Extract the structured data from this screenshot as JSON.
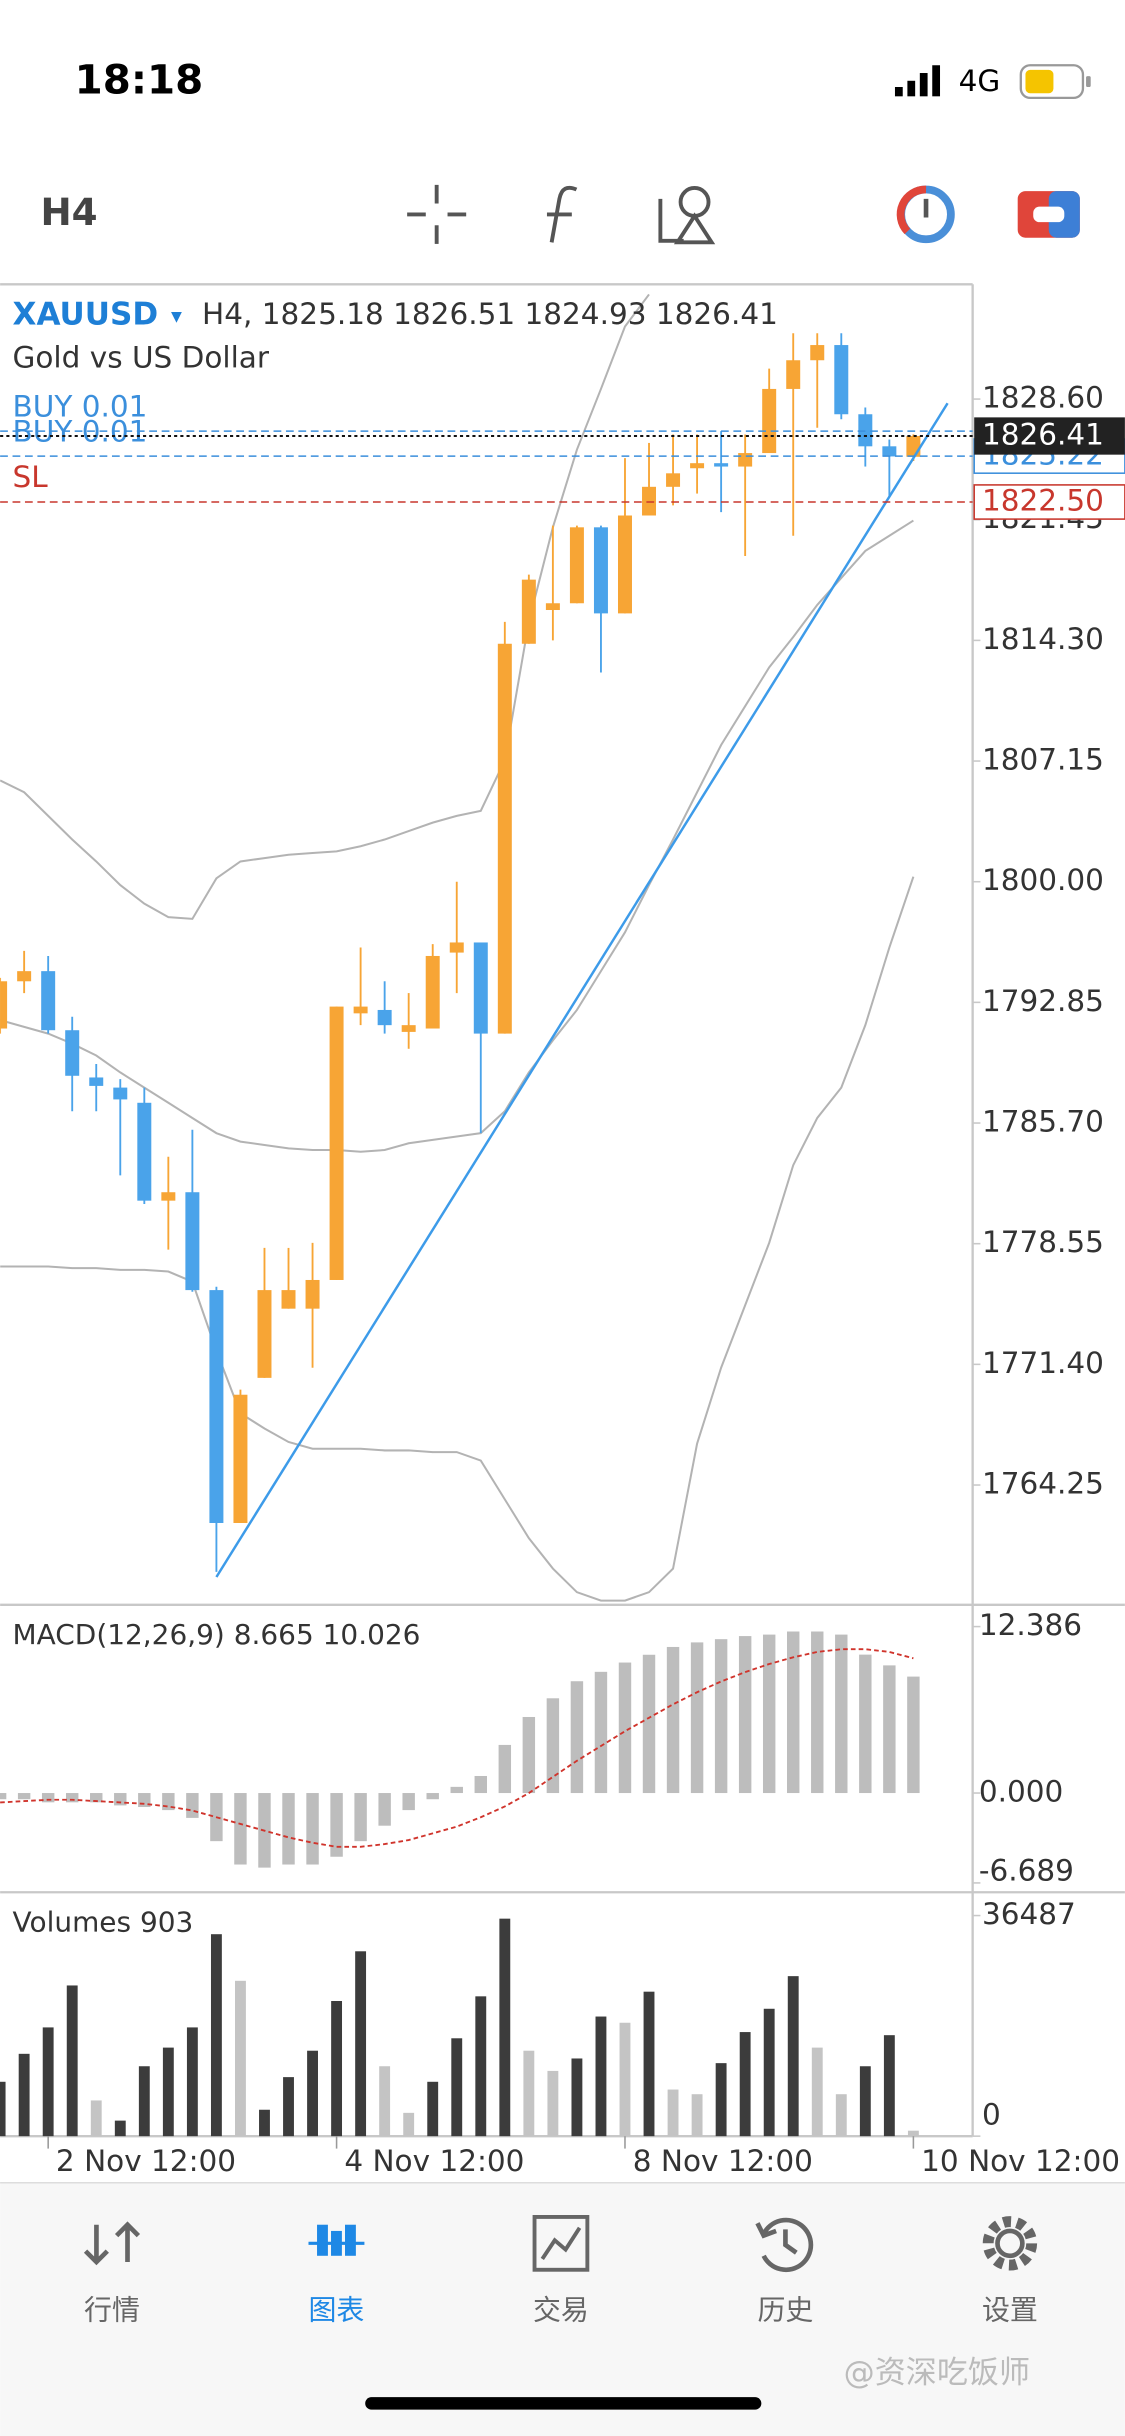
{
  "status_bar": {
    "time": "18:18",
    "network": "4G"
  },
  "toolbar": {
    "timeframe": "H4"
  },
  "chart": {
    "type": "candlestick",
    "symbol": "XAUUSD",
    "info": "H4, 1825.18 1826.51 1824.93 1826.41",
    "description": "Gold vs US Dollar",
    "ylim": [
      1757.15,
      1835.4
    ],
    "yticks": [
      {
        "value": 1828.6,
        "label": "1828.60"
      },
      {
        "value": 1821.45,
        "label": "1821.45"
      },
      {
        "value": 1814.3,
        "label": "1814.30"
      },
      {
        "value": 1807.15,
        "label": "1807.15"
      },
      {
        "value": 1800,
        "label": "1800.00"
      },
      {
        "value": 1792.85,
        "label": "1792.85"
      },
      {
        "value": 1785.7,
        "label": "1785.70"
      },
      {
        "value": 1778.55,
        "label": "1778.55"
      },
      {
        "value": 1771.4,
        "label": "1771.40"
      },
      {
        "value": 1764.25,
        "label": "1764.25"
      }
    ],
    "up_color": "#f7a535",
    "down_color": "#4aa3ea",
    "candles": {
      "open": [
        1791.3,
        1794.1,
        1794.7,
        1791.2,
        1788.4,
        1787.8,
        1786.9,
        1781.1,
        1781.6,
        1775.8,
        1762.0,
        1770.6,
        1774.7,
        1774.7,
        1776.4,
        1792.2,
        1792.4,
        1791.1,
        1791.3,
        1795.8,
        1796.4,
        1791.0,
        1814.1,
        1816.1,
        1816.5,
        1821.0,
        1815.9,
        1821.7,
        1823.4,
        1824.5,
        1824.8,
        1824.6,
        1825.4,
        1829.2,
        1830.9,
        1831.8,
        1827.7,
        1825.8,
        1825.18
      ],
      "high": [
        1794.3,
        1795.9,
        1795.6,
        1792.0,
        1789.2,
        1788.3,
        1787.8,
        1783.7,
        1785.3,
        1776.0,
        1769.9,
        1778.3,
        1778.3,
        1778.6,
        1792.6,
        1796.1,
        1794.1,
        1793.4,
        1796.3,
        1800.0,
        1796.4,
        1815.4,
        1818.2,
        1821.1,
        1821.1,
        1821.1,
        1825.1,
        1826.0,
        1826.5,
        1826.5,
        1826.7,
        1826.5,
        1830.4,
        1832.5,
        1832.5,
        1832.5,
        1828.1,
        1826.2,
        1826.51
      ],
      "low": [
        1791.0,
        1793.4,
        1791.0,
        1786.4,
        1786.4,
        1782.6,
        1780.9,
        1778.2,
        1775.7,
        1759.1,
        1762.0,
        1770.6,
        1774.7,
        1771.2,
        1776.4,
        1791.5,
        1791.0,
        1790.1,
        1791.3,
        1793.4,
        1785.1,
        1791.0,
        1814.1,
        1814.3,
        1816.5,
        1812.4,
        1815.9,
        1821.7,
        1822.3,
        1823.0,
        1821.9,
        1819.3,
        1825.4,
        1820.5,
        1826.9,
        1827.4,
        1824.6,
        1822.8,
        1824.93
      ],
      "close": [
        1794.1,
        1794.7,
        1791.2,
        1788.5,
        1787.9,
        1787.1,
        1781.1,
        1781.6,
        1775.8,
        1762.0,
        1769.6,
        1775.8,
        1775.8,
        1776.4,
        1792.6,
        1792.6,
        1791.5,
        1791.5,
        1795.6,
        1796.4,
        1791.0,
        1814.1,
        1817.9,
        1816.5,
        1821.0,
        1815.9,
        1821.7,
        1823.4,
        1824.2,
        1824.8,
        1824.6,
        1825.4,
        1829.2,
        1830.9,
        1831.8,
        1827.7,
        1825.8,
        1825.2,
        1826.41
      ]
    },
    "bollinger": {
      "color": "#b3b3b3",
      "upper": [
        1806.0,
        1805.3,
        1803.9,
        1802.5,
        1801.2,
        1799.8,
        1798.7,
        1797.9,
        1797.8,
        1800.2,
        1801.2,
        1801.4,
        1801.6,
        1801.7,
        1801.8,
        1802.1,
        1802.5,
        1803.0,
        1803.5,
        1803.9,
        1804.2,
        1807.2,
        1815.4,
        1821.0,
        1825.6,
        1829.2,
        1832.9,
        1834.8,
        null,
        null,
        null,
        null,
        null,
        null,
        null,
        null,
        null,
        null,
        null
      ],
      "middle": [
        1791.8,
        1791.4,
        1791.0,
        1790.4,
        1789.7,
        1788.7,
        1787.8,
        1786.9,
        1786.0,
        1785.1,
        1784.6,
        1784.4,
        1784.2,
        1784.1,
        1784.1,
        1784.0,
        1784.1,
        1784.5,
        1784.7,
        1784.9,
        1785.1,
        1786.4,
        1788.7,
        1790.6,
        1792.4,
        1794.7,
        1797.0,
        1799.8,
        1802.5,
        1805.3,
        1808.1,
        1810.4,
        1812.7,
        1814.5,
        1816.4,
        1818.0,
        1819.6,
        1820.5,
        1821.4
      ],
      "lower": [
        1777.2,
        1777.2,
        1777.2,
        1777.1,
        1777.1,
        1777.0,
        1777.0,
        1776.9,
        1776.3,
        1772.2,
        1768.5,
        1767.6,
        1766.8,
        1766.4,
        1766.4,
        1766.4,
        1766.3,
        1766.3,
        1766.2,
        1766.2,
        1765.7,
        1763.4,
        1761.1,
        1759.3,
        1757.9,
        1757.4,
        1757.4,
        1757.9,
        1759.3,
        1766.7,
        1771.2,
        1774.9,
        1778.6,
        1783.2,
        1786.0,
        1787.8,
        1791.5,
        1796.1,
        1800.3
      ]
    },
    "trendline": {
      "color": "#3d9be9",
      "from": {
        "index": 9,
        "price": 1758.8
      },
      "to": {
        "index": 38,
        "price": 1825.1
      }
    },
    "price_lines": [
      {
        "name": "BUY 0.01",
        "value": 1826.7,
        "color": "#3b8fdc"
      },
      {
        "name": "BUY 0.01",
        "value": 1825.22,
        "label": "1825.22",
        "color": "#3b8fdc"
      },
      {
        "name": "SL",
        "value": 1822.5,
        "label": "1822.50",
        "color": "#c8372d"
      }
    ],
    "current_price": {
      "value": 1826.41,
      "label": "1826.41"
    }
  },
  "macd": {
    "title": "MACD(12,26,9) 8.665 10.026",
    "ylim": [
      -6.689,
      12.386
    ],
    "yticks": [
      {
        "value": 12.386,
        "label": "12.386"
      },
      {
        "value": 0,
        "label": "0.000"
      },
      {
        "value": -6.689,
        "label": "-6.689"
      }
    ],
    "hist_color": "#bdbdbd",
    "signal_color": "#d0342c",
    "histogram": [
      -0.46,
      -0.46,
      -0.69,
      -0.69,
      -0.69,
      -0.92,
      -1.04,
      -1.27,
      -1.85,
      -3.58,
      -5.32,
      -5.55,
      -5.32,
      -5.32,
      -4.74,
      -3.58,
      -2.43,
      -1.27,
      -0.46,
      0.46,
      1.27,
      3.58,
      5.66,
      7.05,
      8.32,
      9.02,
      9.71,
      10.29,
      10.87,
      11.21,
      11.45,
      11.68,
      11.79,
      12.02,
      12.02,
      11.79,
      10.3,
      9.5,
      8.665
    ],
    "signal": [
      -0.7,
      -0.6,
      -0.5,
      -0.5,
      -0.6,
      -0.7,
      -0.8,
      -1.0,
      -1.3,
      -1.8,
      -2.3,
      -2.8,
      -3.3,
      -3.7,
      -4.0,
      -4.0,
      -3.8,
      -3.5,
      -3.0,
      -2.5,
      -1.8,
      -1.0,
      0.0,
      1.2,
      2.4,
      3.5,
      4.6,
      5.6,
      6.6,
      7.5,
      8.3,
      9.0,
      9.6,
      10.1,
      10.5,
      10.7,
      10.7,
      10.5,
      10.026
    ]
  },
  "volumes": {
    "title": "Volumes 903",
    "ylim": [
      0,
      36487
    ],
    "yticks": [
      36487,
      0
    ],
    "values": [
      8993,
      13618,
      17987,
      24924,
      5910,
      2570,
      11563,
      14646,
      17987,
      33404,
      25695,
      4368,
      9764,
      14132,
      22355,
      30577,
      11563,
      3854,
      8993,
      16188,
      23126,
      35973,
      14132,
      10792,
      12848,
      19785,
      18757,
      23896,
      7709,
      6938,
      12077,
      17216,
      21070,
      26466,
      14646,
      6938,
      11563,
      16702,
      903
    ],
    "colors": [
      "#3c3c3c",
      "#3c3c3c",
      "#3c3c3c",
      "#3c3c3c",
      "#c4c4c4",
      "#3c3c3c",
      "#3c3c3c",
      "#3c3c3c",
      "#3c3c3c",
      "#3c3c3c",
      "#c4c4c4",
      "#3c3c3c",
      "#3c3c3c",
      "#3c3c3c",
      "#3c3c3c",
      "#3c3c3c",
      "#c4c4c4",
      "#c4c4c4",
      "#3c3c3c",
      "#3c3c3c",
      "#3c3c3c",
      "#3c3c3c",
      "#c4c4c4",
      "#c4c4c4",
      "#3c3c3c",
      "#3c3c3c",
      "#c4c4c4",
      "#3c3c3c",
      "#c4c4c4",
      "#c4c4c4",
      "#3c3c3c",
      "#3c3c3c",
      "#3c3c3c",
      "#3c3c3c",
      "#c4c4c4",
      "#c4c4c4",
      "#3c3c3c",
      "#3c3c3c",
      "#c4c4c4"
    ]
  },
  "x_axis": {
    "categories": [
      null,
      null,
      "2 Nov 12:00",
      null,
      null,
      null,
      null,
      null,
      null,
      null,
      null,
      null,
      null,
      null,
      "4 Nov 12:00",
      null,
      null,
      null,
      null,
      null,
      null,
      null,
      null,
      null,
      null,
      null,
      "8 Nov 12:00",
      null,
      null,
      null,
      null,
      null,
      null,
      null,
      null,
      null,
      null,
      null,
      "10 Nov 12:00"
    ]
  },
  "tab_bar": {
    "items": [
      "行情",
      "图表",
      "交易",
      "历史",
      "设置"
    ],
    "active": 1,
    "active_color": "#1e88e5"
  },
  "watermark": "@资深吃饭师"
}
